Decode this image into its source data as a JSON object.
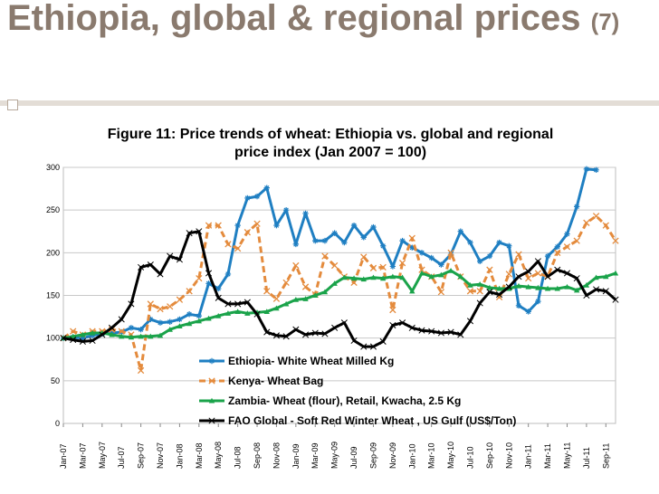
{
  "slide": {
    "title": "Ethiopia, global & regional prices",
    "title_suffix": "(7)"
  },
  "chart_data": {
    "type": "line",
    "title": "Figure 11: Price trends of wheat: Ethiopia vs. global and regional price index (Jan 2007 = 100)",
    "ylim": [
      0,
      300
    ],
    "yticks": [
      0,
      50,
      100,
      150,
      200,
      250,
      300
    ],
    "x_start": "Jan-07",
    "x_tick_labels": [
      "Jan-07",
      "Mar-07",
      "May-07",
      "Jul-07",
      "Sep-07",
      "Nov-07",
      "Jan-08",
      "Mar-08",
      "May-08",
      "Jul-08",
      "Sep-08",
      "Nov-08",
      "Jan-09",
      "Mar-09",
      "May-09",
      "Jul-09",
      "Sep-09",
      "Nov-09",
      "Jan-10",
      "Mar-10",
      "May-10",
      "Jul-10",
      "Sep-10",
      "Nov-10",
      "Jan-11",
      "Mar-11",
      "May-11",
      "Jul-11",
      "Sep-11"
    ],
    "legend_position": "bottom-center",
    "grid": true,
    "series": [
      {
        "name": "Ethiopia- White Wheat Milled Kg",
        "color": "#1f7fc2",
        "style": "solid",
        "marker": "star",
        "values": [
          100,
          101,
          100,
          103,
          105,
          106,
          107,
          112,
          110,
          122,
          118,
          119,
          122,
          128,
          126,
          164,
          158,
          175,
          232,
          264,
          266,
          276,
          232,
          250,
          210,
          246,
          214,
          214,
          223,
          212,
          232,
          218,
          230,
          208,
          184,
          214,
          206,
          200,
          194,
          186,
          198,
          225,
          212,
          190,
          196,
          212,
          208,
          138,
          131,
          143,
          196,
          207,
          222,
          254,
          298,
          297
        ]
      },
      {
        "name": "Kenya- Wheat Bag",
        "color": "#e48b3d",
        "style": "dashed",
        "marker": "cross",
        "values": [
          100,
          108,
          104,
          108,
          108,
          110,
          108,
          104,
          62,
          140,
          134,
          137,
          145,
          155,
          170,
          232,
          232,
          210,
          205,
          224,
          234,
          155,
          146,
          165,
          185,
          160,
          151,
          196,
          185,
          172,
          165,
          195,
          182,
          183,
          133,
          188,
          217,
          180,
          172,
          154,
          200,
          172,
          155,
          155,
          180,
          148,
          175,
          198,
          170,
          176,
          172,
          200,
          207,
          214,
          235,
          243,
          232,
          214
        ]
      },
      {
        "name": "Zambia- Wheat (flour), Retail, Kwacha, 2.5 Kg",
        "color": "#1aa34a",
        "style": "solid",
        "marker": "triangle",
        "values": [
          100,
          102,
          104,
          106,
          106,
          104,
          102,
          101,
          102,
          102,
          103,
          110,
          114,
          117,
          120,
          123,
          126,
          129,
          131,
          129,
          130,
          131,
          135,
          140,
          145,
          146,
          150,
          154,
          164,
          171,
          170,
          169,
          171,
          170,
          172,
          171,
          155,
          176,
          172,
          174,
          179,
          172,
          162,
          163,
          159,
          158,
          158,
          161,
          160,
          159,
          158,
          158,
          160,
          156,
          162,
          171,
          172,
          176
        ]
      },
      {
        "name": "FAO Global - Soft Red Winter Wheat , US Gulf (US$/Ton)",
        "color": "#000000",
        "style": "solid",
        "marker": "x",
        "values": [
          100,
          98,
          96,
          97,
          104,
          112,
          122,
          140,
          183,
          186,
          175,
          196,
          192,
          223,
          225,
          176,
          147,
          140,
          140,
          142,
          128,
          107,
          103,
          102,
          110,
          104,
          106,
          105,
          112,
          118,
          97,
          90,
          90,
          96,
          115,
          118,
          112,
          109,
          108,
          106,
          107,
          104,
          120,
          141,
          154,
          151,
          160,
          172,
          178,
          190,
          172,
          180,
          176,
          170,
          150,
          157,
          155,
          145
        ]
      }
    ]
  }
}
